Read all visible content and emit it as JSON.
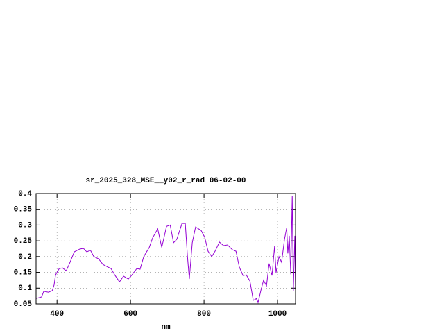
{
  "chart_data": {
    "type": "line",
    "title": "sr_2025_328_MSE__y02_r_rad 06-02-00",
    "x_label": "nm",
    "x": [
      343,
      358,
      364,
      377,
      387,
      392,
      396,
      406,
      415,
      425,
      434,
      447,
      462,
      472,
      481,
      491,
      500,
      513,
      525,
      538,
      547,
      557,
      570,
      581,
      594,
      604,
      617,
      626,
      636,
      651,
      660,
      674,
      685,
      698,
      708,
      717,
      726,
      740,
      749,
      755,
      760,
      768,
      777,
      792,
      802,
      811,
      821,
      830,
      842,
      853,
      864,
      877,
      887,
      896,
      906,
      915,
      925,
      934,
      943,
      947,
      955,
      962,
      970,
      977,
      985,
      992,
      996,
      1004,
      1011,
      1019,
      1025,
      1028,
      1032,
      1036,
      1040,
      1043,
      1047,
      1049
    ],
    "series": [
      {
        "name": "sr_2025_328_MSE__y02_r_rad",
        "color": "#9400d3",
        "values": [
          0.067,
          0.072,
          0.09,
          0.087,
          0.092,
          0.11,
          0.142,
          0.162,
          0.164,
          0.155,
          0.178,
          0.215,
          0.224,
          0.226,
          0.215,
          0.22,
          0.2,
          0.193,
          0.175,
          0.167,
          0.162,
          0.142,
          0.12,
          0.138,
          0.129,
          0.142,
          0.162,
          0.16,
          0.2,
          0.229,
          0.259,
          0.288,
          0.229,
          0.296,
          0.3,
          0.244,
          0.255,
          0.305,
          0.305,
          0.2,
          0.129,
          0.244,
          0.294,
          0.283,
          0.261,
          0.217,
          0.2,
          0.217,
          0.246,
          0.235,
          0.237,
          0.222,
          0.217,
          0.167,
          0.14,
          0.142,
          0.122,
          0.061,
          0.067,
          0.054,
          0.094,
          0.125,
          0.107,
          0.178,
          0.14,
          0.233,
          0.149,
          0.2,
          0.182,
          0.255,
          0.292,
          0.21,
          0.266,
          0.144,
          0.393,
          0.09,
          0.266,
          0.094
        ]
      }
    ],
    "xlim": [
      343,
      1049
    ],
    "ylim": [
      0.05,
      0.4
    ],
    "xticks": [
      400,
      600,
      800,
      1000
    ],
    "yticks": [
      0.05,
      0.1,
      0.15,
      0.2,
      0.25,
      0.3,
      0.35,
      0.4
    ],
    "grid": true
  }
}
